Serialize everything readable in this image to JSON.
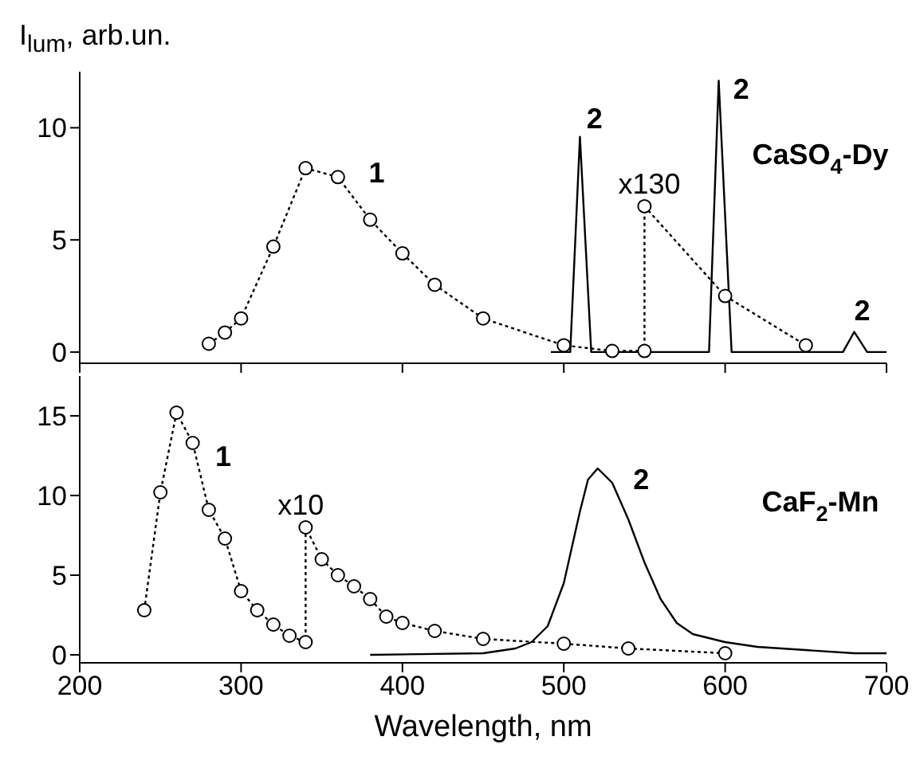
{
  "chart_data": [
    {
      "type": "line",
      "ylabel": "I$_{lum}$, arb.un.",
      "xlim": [
        200,
        700
      ],
      "xticks": [
        200,
        300,
        400,
        500,
        600,
        700
      ],
      "ylim": [
        -0.5,
        12.5
      ],
      "yticks": [
        0,
        5,
        10
      ],
      "tick_labels": "y",
      "series": [
        {
          "color": "#000000",
          "marker": "circle",
          "line_style": "dotted",
          "x": [
            280,
            290,
            300,
            320,
            340,
            360,
            380,
            400,
            420,
            450,
            500,
            530,
            550,
            550,
            600,
            650
          ],
          "values": [
            0.37,
            0.87,
            1.5,
            4.7,
            8.2,
            7.8,
            5.9,
            4.4,
            3.0,
            1.5,
            0.3,
            0.05,
            0.05,
            6.5,
            2.5,
            0.3
          ]
        },
        {
          "color": "#000000",
          "marker": "none",
          "line_style": "solid",
          "x": [
            492,
            504,
            510,
            517,
            590,
            596,
            604,
            673,
            680,
            688,
            700
          ],
          "values": [
            0,
            0,
            9.6,
            0,
            0,
            12.1,
            0,
            0,
            0.9,
            0,
            0
          ]
        }
      ],
      "annotations": [
        "1",
        "2",
        "2",
        "2",
        "x130",
        "CaSO$_{4}$-Dy"
      ]
    },
    {
      "type": "line",
      "xlabel": "Wavelength, nm",
      "xlim": [
        200,
        700
      ],
      "xticks": [
        200,
        300,
        400,
        500,
        600,
        700
      ],
      "ylim": [
        -0.5,
        17.5
      ],
      "yticks": [
        0,
        5,
        10,
        15
      ],
      "series": [
        {
          "color": "#000000",
          "marker": "circle",
          "line_style": "dotted",
          "x": [
            240,
            250,
            260,
            270,
            280,
            290,
            300,
            310,
            320,
            330,
            340,
            340,
            350,
            360,
            370,
            380,
            390,
            400,
            420,
            450,
            500,
            540,
            600
          ],
          "values": [
            2.8,
            10.2,
            15.2,
            13.3,
            9.1,
            7.3,
            4.0,
            2.8,
            1.9,
            1.2,
            0.8,
            8.0,
            6.0,
            5.0,
            4.3,
            3.5,
            2.4,
            2.0,
            1.5,
            1.0,
            0.7,
            0.4,
            0.1
          ]
        },
        {
          "color": "#000000",
          "marker": "none",
          "line_style": "solid",
          "x": [
            380,
            450,
            470,
            480,
            490,
            500,
            510,
            515,
            521,
            530,
            540,
            550,
            560,
            570,
            580,
            600,
            620,
            650,
            680,
            700
          ],
          "values": [
            0,
            0.1,
            0.4,
            0.8,
            1.8,
            4.5,
            9,
            11,
            11.7,
            10.8,
            8.5,
            5.8,
            3.5,
            2.0,
            1.3,
            0.8,
            0.5,
            0.3,
            0.1,
            0.1
          ]
        }
      ],
      "annotations": [
        "1",
        "x10",
        "2",
        "CaF$_{2}$-Mn"
      ]
    }
  ]
}
